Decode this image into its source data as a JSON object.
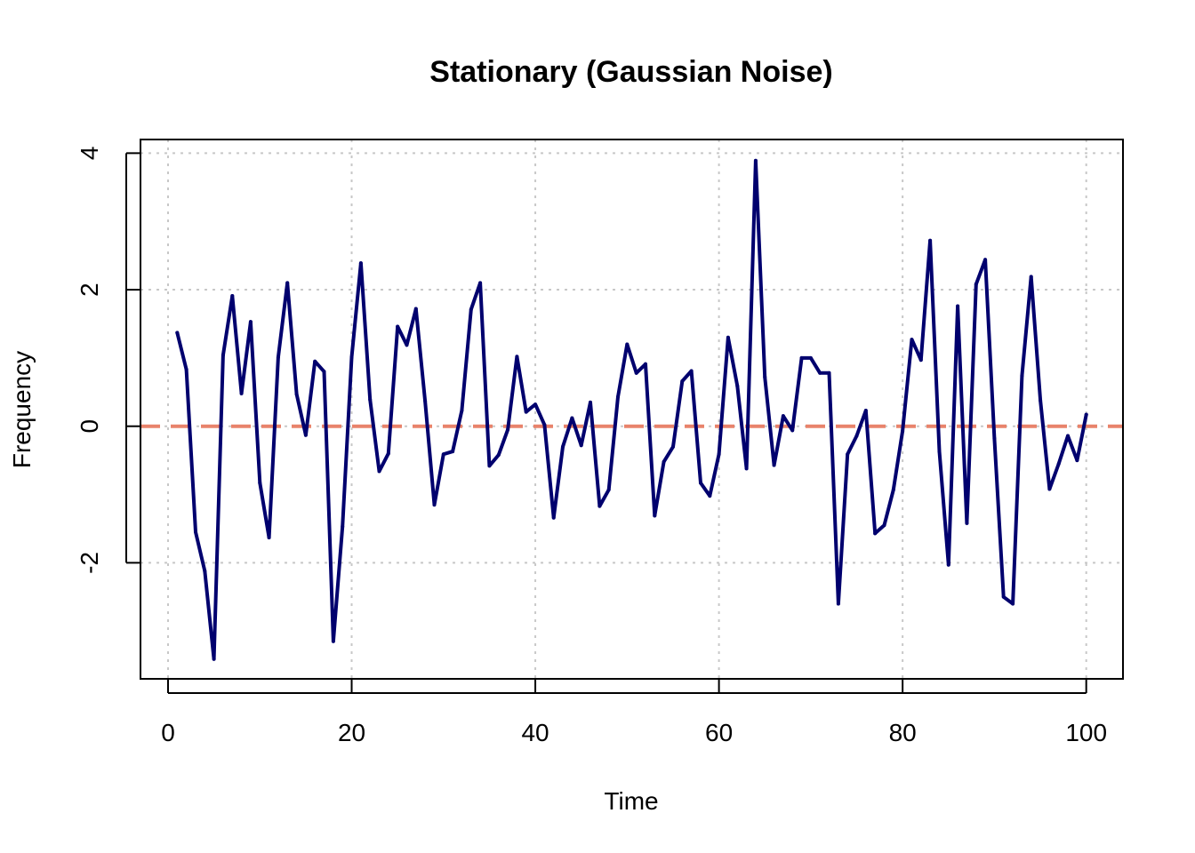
{
  "chart_data": {
    "type": "line",
    "title": "Stationary (Gaussian Noise)",
    "xlabel": "Time",
    "ylabel": "Frequency",
    "xlim": [
      -3,
      104
    ],
    "ylim": [
      -3.7,
      4.2
    ],
    "x_ticks": [
      0,
      20,
      40,
      60,
      80,
      100
    ],
    "x_tick_labels": [
      "0",
      "20",
      "40",
      "60",
      "80",
      "100"
    ],
    "y_ticks": [
      -2,
      0,
      2,
      4
    ],
    "y_tick_labels": [
      "-2",
      "0",
      "2",
      "4"
    ],
    "grid": true,
    "reference_line": {
      "y": 0,
      "style": "dashed",
      "color": "#e8836b"
    },
    "series": [
      {
        "color": "#00006e",
        "x": [
          1,
          2,
          3,
          4,
          5,
          6,
          7,
          8,
          9,
          10,
          11,
          12,
          13,
          14,
          15,
          16,
          17,
          18,
          19,
          20,
          21,
          22,
          23,
          24,
          25,
          26,
          27,
          28,
          29,
          30,
          31,
          32,
          33,
          34,
          35,
          36,
          37,
          38,
          39,
          40,
          41,
          42,
          43,
          44,
          45,
          46,
          47,
          48,
          49,
          50,
          51,
          52,
          53,
          54,
          55,
          56,
          57,
          58,
          59,
          60,
          61,
          62,
          63,
          64,
          65,
          66,
          67,
          68,
          69,
          70,
          71,
          72,
          73,
          74,
          75,
          76,
          77,
          78,
          79,
          80,
          81,
          82,
          83,
          84,
          85,
          86,
          87,
          88,
          89,
          90,
          91,
          92,
          93,
          94,
          95,
          96,
          97,
          98,
          99,
          100
        ],
        "values": [
          1.37,
          0.83,
          -1.55,
          -2.12,
          -3.41,
          1.04,
          1.91,
          0.48,
          1.53,
          -0.83,
          -1.63,
          1.01,
          2.1,
          0.47,
          -0.13,
          0.95,
          0.8,
          -3.15,
          -1.47,
          1.01,
          2.39,
          0.39,
          -0.66,
          -0.4,
          1.46,
          1.19,
          1.72,
          0.37,
          -1.15,
          -0.41,
          -0.37,
          0.23,
          1.71,
          2.1,
          -0.58,
          -0.42,
          -0.05,
          1.02,
          0.21,
          0.32,
          0.02,
          -1.34,
          -0.3,
          0.12,
          -0.28,
          0.35,
          -1.17,
          -0.93,
          0.43,
          1.2,
          0.78,
          0.91,
          -1.31,
          -0.52,
          -0.3,
          0.66,
          0.81,
          -0.83,
          -1.02,
          -0.41,
          1.3,
          0.59,
          -0.62,
          3.89,
          0.72,
          -0.57,
          0.15,
          -0.06,
          1.0,
          1.0,
          0.78,
          0.78,
          -2.6,
          -0.41,
          -0.14,
          0.23,
          -1.57,
          -1.45,
          -0.93,
          -0.07,
          1.27,
          0.97,
          2.72,
          -0.37,
          -2.03,
          1.76,
          -1.42,
          2.08,
          2.44,
          -0.18,
          -2.5,
          -2.6,
          0.74,
          2.19,
          0.38,
          -0.92,
          -0.55,
          -0.14,
          -0.5,
          0.17
        ]
      }
    ]
  }
}
